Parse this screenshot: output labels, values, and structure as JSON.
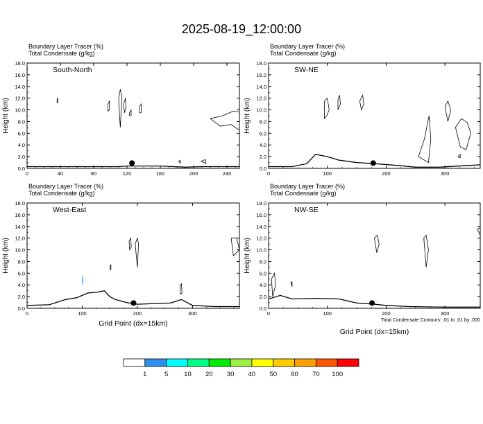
{
  "title": "2025-08-19_12:00:00",
  "colorbar": {
    "colors": [
      "#ffffff",
      "#2f8ff0",
      "#00ffff",
      "#00ff88",
      "#00ee00",
      "#a0f040",
      "#ffff00",
      "#ffcc00",
      "#ffa000",
      "#ff5500",
      "#ff0000"
    ],
    "labels": [
      "1",
      "5",
      "10",
      "20",
      "30",
      "40",
      "50",
      "60",
      "70",
      "100"
    ]
  },
  "chart_data": [
    {
      "type": "contour",
      "panel": "South-North",
      "field_titles": [
        "Boundary Layer Tracer   (%)",
        "Total Condensate   (g/kg)"
      ],
      "xlim": [
        0,
        255
      ],
      "xticks": [
        "0",
        "40",
        "80",
        "120",
        "160",
        "200",
        "240"
      ],
      "xtick_values": [
        0,
        40,
        80,
        120,
        160,
        200,
        240
      ],
      "ylabel": "Height (km)",
      "ylim": [
        0,
        18
      ],
      "yticks": [
        "0.0",
        "2.0",
        "4.0",
        "6.0",
        "8.0",
        "10.0",
        "12.0",
        "14.0",
        "16.0",
        "18.0"
      ],
      "marker": {
        "x": 126,
        "y": 0.9
      },
      "terrain": [
        [
          0,
          0.3
        ],
        [
          60,
          0.3
        ],
        [
          110,
          0.3
        ],
        [
          120,
          0.4
        ],
        [
          160,
          0.4
        ],
        [
          190,
          0.2
        ],
        [
          210,
          0.3
        ],
        [
          255,
          0.3
        ]
      ],
      "condensate_contours": [
        [
          [
            110,
            12
          ],
          [
            112,
            13.5
          ],
          [
            114,
            12
          ],
          [
            113,
            10
          ],
          [
            112,
            7
          ],
          [
            111,
            9
          ],
          [
            110,
            12
          ]
        ],
        [
          [
            116,
            11
          ],
          [
            118,
            12
          ],
          [
            119,
            10.5
          ],
          [
            117,
            9.5
          ],
          [
            116,
            11
          ]
        ],
        [
          [
            97,
            11
          ],
          [
            99,
            11.5
          ],
          [
            99,
            10
          ],
          [
            97,
            9.8
          ],
          [
            97,
            11
          ]
        ],
        [
          [
            135,
            10.5
          ],
          [
            137,
            11
          ],
          [
            137,
            9.5
          ],
          [
            135,
            9.5
          ],
          [
            135,
            10.5
          ]
        ],
        [
          [
            123,
            9.5
          ],
          [
            125,
            10
          ],
          [
            125,
            9
          ],
          [
            123,
            9
          ],
          [
            123,
            9.5
          ]
        ],
        [
          [
            36,
            11.8
          ],
          [
            37,
            12
          ],
          [
            37,
            11.2
          ],
          [
            36,
            11.2
          ],
          [
            36,
            11.8
          ]
        ],
        [
          [
            220,
            8.5
          ],
          [
            235,
            9
          ],
          [
            248,
            9.8
          ],
          [
            255,
            9.6
          ],
          [
            255,
            6.5
          ],
          [
            245,
            7.5
          ],
          [
            232,
            7.2
          ],
          [
            220,
            8.5
          ]
        ],
        [
          [
            182,
            1.2
          ],
          [
            184,
            1.4
          ],
          [
            184,
            0.9
          ],
          [
            182,
            1.2
          ]
        ],
        [
          [
            209,
            1.2
          ],
          [
            214,
            1.5
          ],
          [
            215,
            0.8
          ],
          [
            209,
            1.2
          ]
        ]
      ],
      "annotation": "South-North"
    },
    {
      "type": "contour",
      "panel": "SW-NE",
      "field_titles": [
        "Boundary Layer Tracer   (%)",
        "Total Condensate   (g/kg)"
      ],
      "xlim": [
        0,
        360
      ],
      "xticks": [
        "0",
        "100",
        "200",
        "300"
      ],
      "xtick_values": [
        0,
        100,
        200,
        300
      ],
      "ylabel": "Height (km)",
      "ylim": [
        0,
        18
      ],
      "yticks": [
        "0.0",
        "2.0",
        "4.0",
        "6.0",
        "8.0",
        "10.0",
        "12.0",
        "14.0",
        "16.0",
        "18.0"
      ],
      "marker": {
        "x": 178,
        "y": 0.9
      },
      "terrain": [
        [
          0,
          0.3
        ],
        [
          40,
          0.3
        ],
        [
          65,
          0.8
        ],
        [
          80,
          2.4
        ],
        [
          100,
          2
        ],
        [
          120,
          1.4
        ],
        [
          150,
          1
        ],
        [
          180,
          0.8
        ],
        [
          220,
          0.5
        ],
        [
          250,
          0.2
        ],
        [
          290,
          0.2
        ],
        [
          340,
          0.5
        ],
        [
          360,
          0.6
        ]
      ],
      "condensate_contours": [
        [
          [
            95,
            11.5
          ],
          [
            100,
            12
          ],
          [
            103,
            10
          ],
          [
            99,
            9
          ],
          [
            95,
            8.5
          ],
          [
            95,
            11.5
          ]
        ],
        [
          [
            118,
            11.8
          ],
          [
            121,
            12.5
          ],
          [
            122,
            11
          ],
          [
            118,
            10
          ],
          [
            118,
            11.8
          ]
        ],
        [
          [
            155,
            11.5
          ],
          [
            160,
            12.5
          ],
          [
            162,
            11
          ],
          [
            158,
            10
          ],
          [
            155,
            11.5
          ]
        ],
        [
          [
            300,
            10.5
          ],
          [
            305,
            11.5
          ],
          [
            310,
            10
          ],
          [
            305,
            8
          ],
          [
            300,
            10.5
          ]
        ],
        [
          [
            318,
            7
          ],
          [
            328,
            8.5
          ],
          [
            338,
            7.8
          ],
          [
            344,
            6
          ],
          [
            336,
            3.2
          ],
          [
            326,
            3.7
          ],
          [
            318,
            7
          ]
        ],
        [
          [
            255,
            2
          ],
          [
            265,
            5
          ],
          [
            273,
            9
          ],
          [
            276,
            5
          ],
          [
            272,
            1
          ],
          [
            255,
            2
          ]
        ],
        [
          [
            322,
            2
          ],
          [
            326,
            2.4
          ],
          [
            326,
            1.8
          ],
          [
            322,
            2
          ]
        ]
      ],
      "annotation": "SW-NE"
    },
    {
      "type": "contour",
      "panel": "West-East",
      "field_titles": [
        "Boundary Layer Tracer   (%)",
        "Total Condensate   (g/kg)"
      ],
      "xlim": [
        0,
        385
      ],
      "xticks": [
        "0",
        "100",
        "200",
        "300"
      ],
      "xtick_values": [
        0,
        100,
        200,
        300
      ],
      "xlabel": "Grid Point (dx=15km)",
      "ylabel": "Height (km)",
      "ylim": [
        0,
        18
      ],
      "yticks": [
        "0.0",
        "2.0",
        "4.0",
        "6.0",
        "8.0",
        "10.0",
        "12.0",
        "14.0",
        "16.0",
        "18.0"
      ],
      "marker": {
        "x": 193,
        "y": 0.9
      },
      "terrain": [
        [
          0,
          0.5
        ],
        [
          40,
          0.6
        ],
        [
          70,
          1.5
        ],
        [
          90,
          1.8
        ],
        [
          100,
          2.2
        ],
        [
          110,
          2.6
        ],
        [
          130,
          2.8
        ],
        [
          140,
          3
        ],
        [
          150,
          2
        ],
        [
          160,
          1.5
        ],
        [
          180,
          1
        ],
        [
          200,
          0.7
        ],
        [
          260,
          0.9
        ],
        [
          280,
          1.5
        ],
        [
          300,
          0.5
        ],
        [
          340,
          0.3
        ],
        [
          385,
          0.3
        ]
      ],
      "condensate_contours": [
        [
          [
            200,
            12
          ],
          [
            202,
            11
          ],
          [
            200,
            7
          ],
          [
            198,
            9
          ],
          [
            196,
            11
          ],
          [
            200,
            12
          ]
        ],
        [
          [
            185,
            11.5
          ],
          [
            188,
            12
          ],
          [
            189,
            10.5
          ],
          [
            186,
            10
          ],
          [
            185,
            11.5
          ]
        ],
        [
          [
            150,
            7
          ],
          [
            152,
            7.5
          ],
          [
            152,
            6.5
          ],
          [
            150,
            7
          ]
        ],
        [
          [
            277,
            3.8
          ],
          [
            280,
            4.2
          ],
          [
            281,
            2.6
          ],
          [
            278,
            2.4
          ],
          [
            277,
            3.8
          ]
        ],
        [
          [
            370,
            12
          ],
          [
            380,
            12
          ],
          [
            385,
            10
          ],
          [
            374,
            9
          ],
          [
            370,
            12
          ]
        ]
      ],
      "condensate_filled": [
        [
          [
            100,
            5.4
          ],
          [
            101,
            5.7
          ],
          [
            102,
            4.6
          ],
          [
            101,
            3.8
          ],
          [
            100,
            4.6
          ],
          [
            100,
            5.4
          ]
        ]
      ],
      "annotation": "West-East"
    },
    {
      "type": "contour",
      "panel": "NW-SE",
      "field_titles": [
        "Boundary Layer Tracer   (%)",
        "Total Condensate   (g/kg)"
      ],
      "xlim": [
        0,
        360
      ],
      "xticks": [
        "0",
        "100",
        "200",
        "300"
      ],
      "xtick_values": [
        0,
        100,
        200,
        300
      ],
      "xlabel": "Grid Point (dx=15km)",
      "ylabel": "Height (km)",
      "ylim": [
        0,
        18
      ],
      "yticks": [
        "0.0",
        "2.0",
        "4.0",
        "6.0",
        "8.0",
        "10.0",
        "12.0",
        "14.0",
        "16.0",
        "18.0"
      ],
      "marker": {
        "x": 176,
        "y": 0.9
      },
      "terrain": [
        [
          0,
          1.6
        ],
        [
          20,
          2.2
        ],
        [
          40,
          1.6
        ],
        [
          80,
          1.7
        ],
        [
          120,
          1.6
        ],
        [
          150,
          0.9
        ],
        [
          180,
          0.7
        ],
        [
          200,
          0.5
        ],
        [
          240,
          0.3
        ],
        [
          300,
          0.2
        ],
        [
          360,
          0.2
        ]
      ],
      "condensate_contours": [
        [
          [
            180,
            12
          ],
          [
            185,
            12.5
          ],
          [
            188,
            11
          ],
          [
            184,
            9.5
          ],
          [
            180,
            12
          ]
        ],
        [
          [
            264,
            12
          ],
          [
            268,
            12.5
          ],
          [
            272,
            10
          ],
          [
            268,
            7
          ],
          [
            264,
            12
          ]
        ],
        [
          [
            5,
            5
          ],
          [
            10,
            6
          ],
          [
            12,
            4
          ],
          [
            7,
            2
          ],
          [
            5,
            5
          ]
        ],
        [
          [
            38,
            4.5
          ],
          [
            40,
            4.5
          ],
          [
            40,
            3.7
          ],
          [
            38,
            4.5
          ]
        ],
        [
          [
            355,
            13.5
          ],
          [
            360,
            13.8
          ],
          [
            360,
            12.5
          ],
          [
            355,
            13.5
          ]
        ]
      ],
      "annotation": "NW-SE",
      "footnote": "Total Condensate Contours: .01 to .01 by .000"
    }
  ]
}
